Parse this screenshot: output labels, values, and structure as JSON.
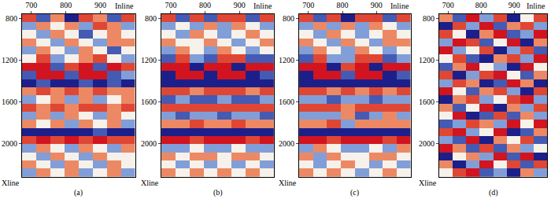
{
  "chart_data": [
    {
      "type": "heatmap",
      "label": "(a)",
      "x_label": "Inline",
      "y_label": "Xline",
      "xlim": [
        673,
        1000
      ],
      "ylim": [
        2320,
        760
      ],
      "xticks": [
        700,
        800,
        900
      ],
      "yticks": [
        800,
        1200,
        1600,
        2000
      ],
      "zlim": [
        -3,
        3
      ],
      "x": [
        693,
        734,
        775,
        816,
        857,
        898,
        939,
        980
      ],
      "y": [
        799,
        877,
        955,
        1033,
        1111,
        1189,
        1267,
        1345,
        1423,
        1501,
        1579,
        1657,
        1735,
        1813,
        1891,
        1969,
        2047,
        2125,
        2203,
        2281
      ],
      "cells": [
        [
          2,
          -2,
          1,
          -3,
          2,
          1,
          -2,
          2
        ],
        [
          -1,
          1,
          0,
          1,
          -1,
          2,
          1,
          -1
        ],
        [
          0,
          -1,
          1,
          0,
          -2,
          0,
          1,
          0
        ],
        [
          1,
          0,
          -1,
          1,
          0,
          -1,
          1,
          1
        ],
        [
          -1,
          1,
          0,
          -1,
          1,
          0,
          -2,
          0
        ],
        [
          0,
          2,
          -1,
          0,
          1,
          2,
          0,
          -1
        ],
        [
          3,
          3,
          -2,
          2,
          3,
          -2,
          3,
          2
        ],
        [
          -2,
          3,
          3,
          -2,
          3,
          3,
          -2,
          -1
        ],
        [
          -3,
          -2,
          -3,
          -3,
          -2,
          -3,
          -2,
          -3
        ],
        [
          1,
          2,
          1,
          2,
          1,
          2,
          1,
          1
        ],
        [
          -1,
          0,
          1,
          -1,
          1,
          -1,
          0,
          1
        ],
        [
          2,
          1,
          2,
          1,
          2,
          2,
          1,
          2
        ],
        [
          -1,
          1,
          -1,
          1,
          0,
          -1,
          1,
          0
        ],
        [
          1,
          0,
          1,
          -1,
          1,
          0,
          1,
          -1
        ],
        [
          -3,
          -3,
          -3,
          -3,
          -3,
          -2,
          -3,
          -3
        ],
        [
          2,
          3,
          2,
          3,
          2,
          3,
          2,
          2
        ],
        [
          -1,
          1,
          0,
          -1,
          1,
          0,
          -1,
          1
        ],
        [
          0,
          -1,
          1,
          0,
          -1,
          1,
          0,
          0
        ],
        [
          1,
          0,
          -1,
          1,
          0,
          -1,
          1,
          0
        ],
        [
          -1,
          1,
          0,
          1,
          -1,
          0,
          1,
          -1
        ]
      ]
    },
    {
      "type": "heatmap",
      "label": "(b)",
      "x_label": "Inline",
      "y_label": "Xline",
      "xlim": [
        673,
        1000
      ],
      "ylim": [
        2320,
        760
      ],
      "xticks": [
        700,
        800,
        900
      ],
      "yticks": [
        800,
        1200,
        1600,
        2000
      ],
      "zlim": [
        -3,
        3
      ],
      "x": [
        693,
        734,
        775,
        816,
        857,
        898,
        939,
        980
      ],
      "y": [
        799,
        877,
        955,
        1033,
        1111,
        1189,
        1267,
        1345,
        1423,
        1501,
        1579,
        1657,
        1735,
        1813,
        1891,
        1969,
        2047,
        2125,
        2203,
        2281
      ],
      "cells": [
        [
          2,
          -2,
          2,
          -2,
          2,
          2,
          -2,
          2
        ],
        [
          -1,
          0,
          -1,
          1,
          -1,
          1,
          0,
          -1
        ],
        [
          0,
          -1,
          1,
          0,
          -1,
          0,
          1,
          0
        ],
        [
          1,
          0,
          0,
          1,
          0,
          -1,
          0,
          1
        ],
        [
          -1,
          1,
          0,
          -1,
          1,
          0,
          -1,
          0
        ],
        [
          -2,
          2,
          -1,
          -2,
          2,
          2,
          -2,
          -2
        ],
        [
          3,
          3,
          -3,
          3,
          3,
          -3,
          3,
          3
        ],
        [
          -3,
          3,
          3,
          -3,
          3,
          3,
          -3,
          -2
        ],
        [
          -3,
          -3,
          -3,
          -3,
          -3,
          -3,
          -3,
          -3
        ],
        [
          2,
          2,
          1,
          2,
          2,
          2,
          1,
          2
        ],
        [
          -2,
          -1,
          -2,
          -2,
          -1,
          -2,
          -2,
          -1
        ],
        [
          2,
          2,
          2,
          2,
          2,
          2,
          2,
          2
        ],
        [
          -1,
          -2,
          -1,
          -1,
          -2,
          -1,
          -1,
          -2
        ],
        [
          1,
          1,
          2,
          1,
          1,
          2,
          1,
          1
        ],
        [
          -3,
          -3,
          -3,
          -3,
          -3,
          -3,
          -3,
          -3
        ],
        [
          3,
          3,
          2,
          3,
          3,
          3,
          2,
          3
        ],
        [
          -1,
          -1,
          0,
          -1,
          -1,
          0,
          -1,
          -1
        ],
        [
          1,
          0,
          1,
          1,
          0,
          1,
          1,
          0
        ],
        [
          0,
          -1,
          0,
          -1,
          0,
          -1,
          0,
          -1
        ],
        [
          1,
          0,
          1,
          0,
          1,
          0,
          1,
          0
        ]
      ]
    },
    {
      "type": "heatmap",
      "label": "(c)",
      "x_label": "Inline",
      "y_label": "Xline",
      "xlim": [
        673,
        1000
      ],
      "ylim": [
        2320,
        760
      ],
      "xticks": [
        700,
        800,
        900
      ],
      "yticks": [
        800,
        1200,
        1600,
        2000
      ],
      "zlim": [
        -3,
        3
      ],
      "x": [
        693,
        734,
        775,
        816,
        857,
        898,
        939,
        980
      ],
      "y": [
        799,
        877,
        955,
        1033,
        1111,
        1189,
        1267,
        1345,
        1423,
        1501,
        1579,
        1657,
        1735,
        1813,
        1891,
        1969,
        2047,
        2125,
        2203,
        2281
      ],
      "cells": [
        [
          2,
          -2,
          2,
          -3,
          2,
          2,
          -2,
          2
        ],
        [
          -1,
          1,
          -1,
          1,
          -1,
          1,
          0,
          -1
        ],
        [
          0,
          -1,
          1,
          0,
          -1,
          0,
          1,
          0
        ],
        [
          1,
          0,
          -1,
          1,
          0,
          -1,
          1,
          1
        ],
        [
          -1,
          1,
          0,
          -1,
          1,
          0,
          -1,
          0
        ],
        [
          -2,
          2,
          -1,
          -1,
          2,
          2,
          -2,
          -1
        ],
        [
          3,
          3,
          -3,
          2,
          3,
          -3,
          3,
          3
        ],
        [
          -3,
          3,
          3,
          -2,
          3,
          3,
          -3,
          -2
        ],
        [
          -3,
          -3,
          -3,
          -3,
          -3,
          -3,
          -3,
          -3
        ],
        [
          2,
          2,
          1,
          2,
          1,
          2,
          1,
          2
        ],
        [
          -1,
          -1,
          -2,
          -1,
          -1,
          -2,
          -1,
          -1
        ],
        [
          2,
          2,
          2,
          1,
          2,
          2,
          2,
          2
        ],
        [
          -1,
          -1,
          -1,
          1,
          -2,
          -1,
          1,
          -1
        ],
        [
          1,
          1,
          2,
          -1,
          1,
          1,
          1,
          1
        ],
        [
          -3,
          -3,
          -3,
          -3,
          -3,
          -3,
          -3,
          -3
        ],
        [
          3,
          3,
          2,
          3,
          3,
          3,
          2,
          3
        ],
        [
          -1,
          1,
          0,
          -1,
          -1,
          0,
          -1,
          1
        ],
        [
          1,
          -1,
          1,
          0,
          0,
          1,
          1,
          0
        ],
        [
          0,
          -1,
          0,
          1,
          0,
          -1,
          0,
          -1
        ],
        [
          1,
          0,
          1,
          0,
          -1,
          0,
          1,
          0
        ]
      ]
    },
    {
      "type": "heatmap",
      "label": "(d)",
      "x_label": "Inline",
      "y_label": "Xline",
      "xlim": [
        673,
        1000
      ],
      "ylim": [
        2320,
        760
      ],
      "xticks": [
        700,
        800,
        900
      ],
      "yticks": [
        800,
        1200,
        1600,
        2000
      ],
      "zlim": [
        -3,
        3
      ],
      "x": [
        693,
        734,
        775,
        816,
        857,
        898,
        939,
        980
      ],
      "y": [
        799,
        877,
        955,
        1033,
        1111,
        1189,
        1267,
        1345,
        1423,
        1501,
        1579,
        1657,
        1735,
        1813,
        1891,
        1969,
        2047,
        2125,
        2203,
        2281
      ],
      "cells": [
        [
          1,
          -2,
          3,
          -1,
          2,
          -3,
          0,
          2
        ],
        [
          -3,
          2,
          -1,
          3,
          -2,
          1,
          2,
          -1
        ],
        [
          2,
          0,
          -3,
          1,
          3,
          -2,
          -1,
          3
        ],
        [
          -1,
          3,
          2,
          -2,
          0,
          3,
          -3,
          1
        ],
        [
          3,
          -1,
          0,
          2,
          -3,
          -1,
          2,
          -2
        ],
        [
          0,
          2,
          -2,
          -3,
          1,
          2,
          -1,
          3
        ],
        [
          -2,
          1,
          3,
          0,
          -1,
          -3,
          3,
          0
        ],
        [
          2,
          -3,
          -1,
          2,
          3,
          0,
          -2,
          1
        ],
        [
          -1,
          2,
          1,
          -3,
          -2,
          3,
          1,
          -3
        ],
        [
          3,
          0,
          -2,
          1,
          2,
          -1,
          -3,
          2
        ],
        [
          -3,
          1,
          2,
          -1,
          0,
          2,
          3,
          -1
        ],
        [
          1,
          -2,
          0,
          3,
          -3,
          1,
          -1,
          2
        ],
        [
          0,
          3,
          -3,
          -2,
          2,
          -2,
          1,
          -1
        ],
        [
          -2,
          -1,
          2,
          1,
          -1,
          3,
          0,
          3
        ],
        [
          2,
          3,
          -1,
          0,
          3,
          -3,
          -2,
          1
        ],
        [
          -1,
          -2,
          3,
          -3,
          1,
          0,
          2,
          -2
        ],
        [
          3,
          1,
          -2,
          2,
          -2,
          1,
          -1,
          0
        ],
        [
          -3,
          0,
          1,
          -1,
          3,
          -2,
          3,
          -3
        ],
        [
          1,
          -3,
          -1,
          3,
          0,
          2,
          -2,
          2
        ],
        [
          0,
          2,
          3,
          -2,
          -1,
          -3,
          1,
          -1
        ]
      ]
    }
  ]
}
